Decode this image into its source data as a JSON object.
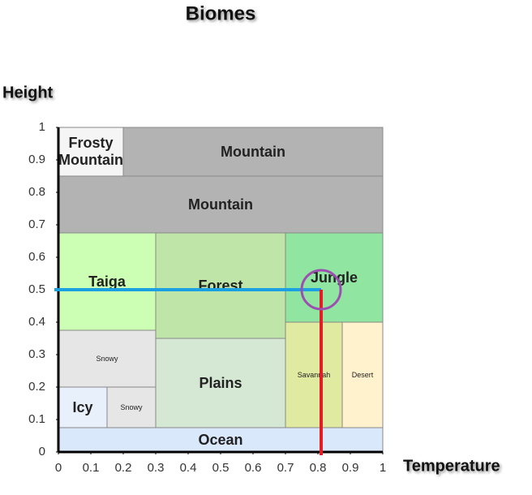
{
  "chart_data": {
    "type": "region",
    "title": "Biomes",
    "xlabel": "Temperature",
    "ylabel": "Height",
    "xlim": [
      0,
      1
    ],
    "ylim": [
      0,
      1
    ],
    "xticks": [
      0,
      0.1,
      0.2,
      0.3,
      0.4,
      0.5,
      0.6,
      0.7,
      0.8,
      0.9,
      1
    ],
    "yticks": [
      0,
      0.1,
      0.2,
      0.3,
      0.4,
      0.5,
      0.6,
      0.7,
      0.8,
      0.9,
      1
    ],
    "regions": [
      {
        "label": "Ocean",
        "x0": 0,
        "x1": 1,
        "y0": 0,
        "y1": 0.075,
        "color": "#dae8fc",
        "size": "big"
      },
      {
        "label": "Icy",
        "x0": 0,
        "x1": 0.15,
        "y0": 0.075,
        "y1": 0.2,
        "color": "#e8f0fb",
        "size": "big"
      },
      {
        "label": "Snowy",
        "x0": 0.15,
        "x1": 0.3,
        "y0": 0.075,
        "y1": 0.2,
        "color": "#e6e6e6",
        "size": "small"
      },
      {
        "label": "Snowy",
        "x0": 0,
        "x1": 0.3,
        "y0": 0.2,
        "y1": 0.375,
        "color": "#e6e6e6",
        "size": "small"
      },
      {
        "label": "Taiga",
        "x0": 0,
        "x1": 0.3,
        "y0": 0.375,
        "y1": 0.675,
        "color": "#ccffb3",
        "size": "big"
      },
      {
        "label": "Plains",
        "x0": 0.3,
        "x1": 0.7,
        "y0": 0.075,
        "y1": 0.35,
        "color": "#d5e8d4",
        "size": "big"
      },
      {
        "label": "Forest",
        "x0": 0.3,
        "x1": 0.7,
        "y0": 0.35,
        "y1": 0.675,
        "color": "#bfe6a8",
        "size": "big"
      },
      {
        "label": "Savannah",
        "x0": 0.7,
        "x1": 0.875,
        "y0": 0.075,
        "y1": 0.4,
        "color": "#e0eaa0",
        "size": "small"
      },
      {
        "label": "Desert",
        "x0": 0.875,
        "x1": 1,
        "y0": 0.075,
        "y1": 0.4,
        "color": "#fff2cc",
        "size": "small"
      },
      {
        "label": "Jungle",
        "x0": 0.7,
        "x1": 1,
        "y0": 0.4,
        "y1": 0.675,
        "color": "#90e6a0",
        "size": "big"
      },
      {
        "label": "Mountain",
        "x0": 0,
        "x1": 1,
        "y0": 0.675,
        "y1": 0.85,
        "color": "#b3b3b3",
        "size": "big"
      },
      {
        "label": "Frosty Mountain",
        "x0": 0,
        "x1": 0.2,
        "y0": 0.85,
        "y1": 1,
        "color": "#f5f5f5",
        "size": "big"
      },
      {
        "label": "Mountain",
        "x0": 0.2,
        "x1": 1,
        "y0": 0.85,
        "y1": 1,
        "color": "#b3b3b3",
        "size": "big"
      }
    ],
    "point": {
      "x": 0.81,
      "y": 0.5,
      "hline_color": "#1ba1e2",
      "vline_color": "#e51c23",
      "circle_color": "#9c4fb0"
    }
  }
}
